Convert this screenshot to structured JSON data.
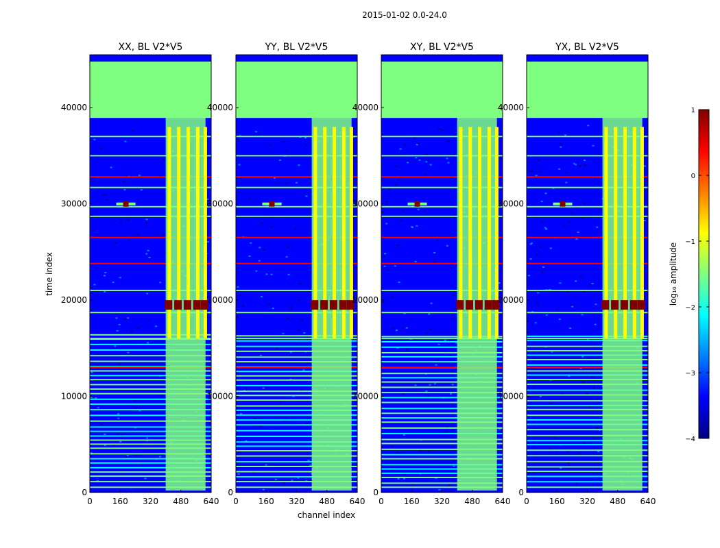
{
  "figure": {
    "suptitle": "2015-01-02 0.0-24.0"
  },
  "colors": {
    "jet": [
      "#00007f",
      "#0000ff",
      "#007fff",
      "#00ffff",
      "#7fff7f",
      "#ffff00",
      "#ff7f00",
      "#ff0000",
      "#7f0000"
    ]
  },
  "chart_data": {
    "type": "heatmap",
    "xlabel": "channel index",
    "ylabel": "time index",
    "xlim": [
      0,
      640
    ],
    "ylim": [
      0,
      45500
    ],
    "xticks": [
      0,
      160,
      320,
      480,
      640
    ],
    "yticks": [
      0,
      10000,
      20000,
      30000,
      40000
    ],
    "colormap": "jet",
    "colorbar": {
      "label": "log₁₀ amplitude",
      "range": [
        -4,
        1
      ],
      "ticks": [
        "−4",
        "−3",
        "−2",
        "−1",
        "0",
        "1"
      ]
    },
    "panels": [
      {
        "title": "XX, BL V2*V5",
        "hot_band": [
          19000,
          20000
        ],
        "hot_channels": [
          410,
          460,
          510,
          560,
          600
        ]
      },
      {
        "title": "YY, BL V2*V5",
        "hot_band": [
          19000,
          20000
        ],
        "hot_channels": [
          410,
          460,
          510,
          560,
          600
        ]
      },
      {
        "title": "XY, BL V2*V5",
        "hot_band": [
          19000,
          20000
        ],
        "hot_channels": [
          410,
          460,
          510,
          560,
          600
        ]
      },
      {
        "title": "YX, BL V2*V5",
        "hot_band": [
          19000,
          20000
        ],
        "hot_channels": [
          410,
          460,
          510,
          560,
          600
        ]
      }
    ],
    "flagged_region": {
      "time_range": [
        39000,
        44800
      ],
      "value": -1.2
    },
    "narrowband_rfi": {
      "channel": 190,
      "time": 30000,
      "value": 1
    }
  }
}
